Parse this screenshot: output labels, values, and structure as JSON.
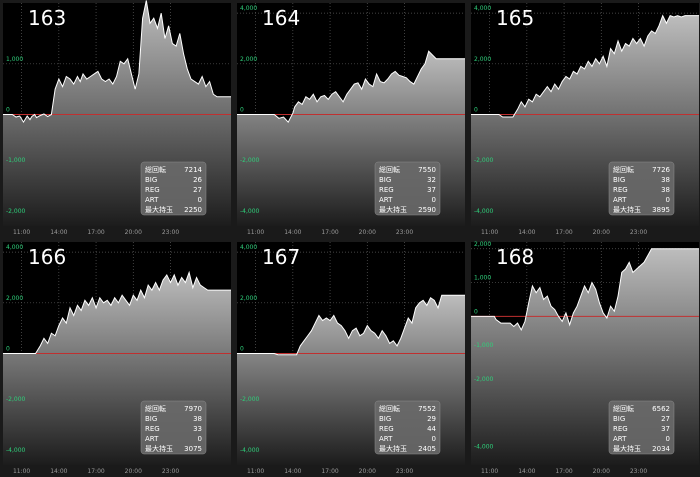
{
  "stats_labels": [
    "総回転",
    "BIG",
    "REG",
    "ART",
    "最大持玉"
  ],
  "x_ticks": [
    "11:00",
    "14:00",
    "17:00",
    "20:00",
    "23:00"
  ],
  "colors": {
    "background": "#000000",
    "zero_line": "#c03030",
    "ytick": "#2ecf7a",
    "xtick": "#9a9a9a",
    "line": "#ffffff"
  },
  "chart_data": [
    {
      "type": "area",
      "title": "163",
      "ylim": [
        -2200,
        2200
      ],
      "y_ticks": [
        "1,000",
        "0",
        "-1,000",
        "-2,000"
      ],
      "y_tick_values": [
        1000,
        0,
        -1000,
        -2000
      ],
      "stats": [
        "7214",
        "26",
        "27",
        "0",
        "2250"
      ],
      "x": [
        0,
        1,
        1.4,
        1.8,
        2.2,
        2.6,
        2.9,
        3.1,
        3.4,
        3.6,
        4.0,
        4.4,
        4.8,
        5.2,
        5.6,
        6.0,
        6.4,
        6.8,
        7.2,
        7.6,
        8.0,
        8.3,
        8.6,
        9.0,
        9.4,
        9.8,
        10.2,
        10.6,
        11.0,
        11.4,
        11.8,
        12.2,
        12.6,
        13.0,
        13.4,
        13.8,
        14.2,
        14.6,
        15.0,
        15.4,
        15.8,
        16.2,
        16.6,
        17.0,
        17.4,
        17.8,
        18.2,
        18.6,
        19.0,
        19.4,
        19.8,
        20.2,
        20.6,
        21.0,
        21.4,
        21.8,
        22.2,
        22.6,
        23.0,
        23.4,
        23.8,
        24.5
      ],
      "y": [
        0,
        0,
        -50,
        -30,
        -150,
        -30,
        -100,
        -40,
        0,
        -60,
        -20,
        10,
        -40,
        0,
        500,
        700,
        550,
        750,
        700,
        600,
        750,
        650,
        800,
        700,
        750,
        800,
        850,
        700,
        650,
        700,
        600,
        750,
        1050,
        1000,
        1100,
        800,
        500,
        800,
        1900,
        2250,
        1800,
        1900,
        1700,
        2000,
        1500,
        1750,
        1400,
        1350,
        1600,
        1200,
        900,
        700,
        650,
        600,
        750,
        550,
        650,
        400,
        350,
        350,
        350,
        350
      ]
    },
    {
      "type": "area",
      "title": "164",
      "ylim": [
        -4400,
        4400
      ],
      "y_ticks": [
        "4,000",
        "2,000",
        "0",
        "-2,000",
        "-4,000"
      ],
      "y_tick_values": [
        4000,
        2000,
        0,
        -2000,
        -4000
      ],
      "stats": [
        "7550",
        "32",
        "37",
        "0",
        "2590"
      ],
      "x": [
        0,
        4,
        4.5,
        5,
        5.5,
        6.0,
        6.2,
        6.6,
        7.0,
        7.4,
        7.8,
        8.2,
        8.6,
        9.0,
        9.4,
        9.8,
        10.2,
        10.6,
        11.0,
        11.4,
        11.8,
        12.2,
        12.6,
        13.0,
        13.4,
        13.8,
        14.2,
        14.6,
        15.0,
        15.4,
        15.8,
        16.2,
        16.6,
        17.0,
        17.4,
        17.8,
        18.2,
        18.6,
        19.0,
        19.4,
        19.8,
        20.2,
        20.6,
        21.0,
        21.4,
        21.8,
        22.2,
        22.6,
        23.0,
        23.4,
        24.5
      ],
      "y": [
        0,
        0,
        -150,
        -100,
        -300,
        50,
        300,
        500,
        400,
        700,
        600,
        800,
        500,
        700,
        750,
        600,
        800,
        900,
        700,
        500,
        800,
        1000,
        1200,
        1250,
        1000,
        1400,
        1200,
        1100,
        1600,
        1300,
        1250,
        1400,
        1600,
        1700,
        1550,
        1500,
        1450,
        1300,
        1200,
        1500,
        1800,
        2000,
        2500,
        2350,
        2200,
        2200,
        2200,
        2200,
        2200,
        2200,
        2200
      ]
    },
    {
      "type": "area",
      "title": "165",
      "ylim": [
        -4400,
        4400
      ],
      "y_ticks": [
        "4,000",
        "2,000",
        "0",
        "-2,000",
        "-4,000"
      ],
      "y_tick_values": [
        4000,
        2000,
        0,
        -2000,
        -4000
      ],
      "stats": [
        "7726",
        "38",
        "38",
        "0",
        "3895"
      ],
      "x": [
        0,
        3,
        3.4,
        4.5,
        5.0,
        5.4,
        5.8,
        6.2,
        6.6,
        7.0,
        7.4,
        7.8,
        8.2,
        8.6,
        9.0,
        9.4,
        9.8,
        10.2,
        10.6,
        11.0,
        11.4,
        11.8,
        12.2,
        12.6,
        13.0,
        13.4,
        13.8,
        14.2,
        14.6,
        15.0,
        15.4,
        15.8,
        16.2,
        16.6,
        17.0,
        17.4,
        17.8,
        18.2,
        18.6,
        19.0,
        19.4,
        19.8,
        20.2,
        20.6,
        21.0,
        21.4,
        21.8,
        22.2,
        22.6,
        23.0,
        24.5
      ],
      "y": [
        0,
        0,
        -100,
        -100,
        200,
        500,
        300,
        600,
        500,
        800,
        700,
        900,
        1100,
        900,
        1200,
        1000,
        1300,
        1500,
        1400,
        1700,
        1600,
        1900,
        1800,
        2100,
        1900,
        2200,
        2000,
        2300,
        1900,
        2600,
        2400,
        2900,
        2500,
        2800,
        2700,
        3000,
        2800,
        3000,
        2700,
        3100,
        3300,
        3200,
        3500,
        3900,
        3600,
        3900,
        3850,
        3900,
        3850,
        3900,
        3900
      ]
    },
    {
      "type": "area",
      "title": "166",
      "ylim": [
        -4400,
        4400
      ],
      "y_ticks": [
        "4,000",
        "2,000",
        "0",
        "-2,000",
        "-4,000"
      ],
      "y_tick_values": [
        4000,
        2000,
        0,
        -2000,
        -4000
      ],
      "stats": [
        "7970",
        "38",
        "33",
        "0",
        "3075"
      ],
      "x": [
        0,
        3.5,
        4.0,
        4.4,
        4.8,
        5.2,
        5.6,
        6.0,
        6.4,
        6.8,
        7.2,
        7.6,
        8.0,
        8.4,
        8.8,
        9.2,
        9.6,
        10.0,
        10.4,
        10.8,
        11.2,
        11.6,
        12.0,
        12.4,
        12.8,
        13.2,
        13.6,
        14.0,
        14.4,
        14.8,
        15.2,
        15.6,
        16.0,
        16.4,
        16.8,
        17.2,
        17.6,
        18.0,
        18.4,
        18.8,
        19.2,
        19.6,
        20.0,
        20.4,
        20.8,
        21.2,
        21.6,
        22.0,
        24.5
      ],
      "y": [
        0,
        0,
        300,
        600,
        400,
        800,
        700,
        1100,
        1400,
        1200,
        1800,
        1500,
        1900,
        1700,
        2100,
        1900,
        2200,
        1800,
        2200,
        2000,
        2100,
        1900,
        2200,
        2000,
        2300,
        2100,
        1900,
        2300,
        2100,
        2500,
        2200,
        2700,
        2500,
        2800,
        2500,
        2900,
        3100,
        2800,
        3100,
        2700,
        3000,
        2800,
        3200,
        2600,
        3000,
        2700,
        2600,
        2500,
        2500
      ]
    },
    {
      "type": "area",
      "title": "167",
      "ylim": [
        -4400,
        4400
      ],
      "y_ticks": [
        "4,000",
        "2,000",
        "0",
        "-2,000",
        "-4,000"
      ],
      "y_tick_values": [
        4000,
        2000,
        0,
        -2000,
        -4000
      ],
      "stats": [
        "7552",
        "29",
        "44",
        "0",
        "2405"
      ],
      "x": [
        0,
        4.0,
        4.4,
        6.4,
        6.8,
        7.2,
        7.6,
        8.0,
        8.4,
        8.8,
        9.2,
        9.6,
        10.0,
        10.4,
        10.8,
        11.2,
        11.6,
        12.0,
        12.4,
        12.8,
        13.2,
        13.6,
        14.0,
        14.4,
        14.8,
        15.2,
        15.6,
        16.0,
        16.4,
        16.8,
        17.2,
        17.6,
        18.0,
        18.4,
        18.8,
        19.2,
        19.6,
        20.0,
        20.4,
        20.8,
        21.2,
        21.6,
        22.0,
        22.4,
        24.5
      ],
      "y": [
        0,
        0,
        -50,
        -50,
        300,
        500,
        700,
        900,
        1200,
        1500,
        1300,
        1400,
        1300,
        1500,
        1200,
        1100,
        900,
        600,
        900,
        1000,
        700,
        800,
        1100,
        900,
        800,
        600,
        900,
        700,
        400,
        500,
        300,
        600,
        1000,
        1400,
        1200,
        1800,
        2000,
        2100,
        1900,
        2200,
        2100,
        1800,
        2300,
        2300,
        2300
      ]
    },
    {
      "type": "area",
      "title": "168",
      "ylim": [
        -4400,
        2200
      ],
      "y_ticks": [
        "2,000",
        "1,000",
        "0",
        "-1,000",
        "-2,000",
        "-4,000"
      ],
      "y_tick_values": [
        2000,
        1000,
        0,
        -1000,
        -2000,
        -4000
      ],
      "stats": [
        "6562",
        "27",
        "37",
        "0",
        "2034"
      ],
      "x": [
        0,
        2.5,
        2.7,
        3.2,
        3.8,
        4.2,
        4.6,
        5.0,
        5.4,
        5.8,
        6.2,
        6.6,
        7.0,
        7.4,
        7.8,
        8.2,
        8.6,
        9.0,
        9.4,
        9.8,
        10.2,
        10.6,
        11.0,
        11.4,
        11.8,
        12.2,
        12.6,
        13.0,
        13.4,
        13.8,
        14.2,
        14.6,
        15.0,
        15.4,
        15.8,
        16.2,
        16.6,
        17.0,
        17.4,
        17.8,
        18.2,
        18.6,
        19.0,
        19.4,
        20.0,
        24.5
      ],
      "y": [
        0,
        0,
        -100,
        -200,
        -200,
        -200,
        -300,
        -200,
        -400,
        -150,
        400,
        900,
        700,
        850,
        500,
        600,
        300,
        200,
        0,
        -150,
        100,
        -250,
        100,
        300,
        600,
        900,
        700,
        1000,
        800,
        400,
        100,
        -50,
        300,
        150,
        600,
        1300,
        1400,
        1600,
        1300,
        1400,
        1500,
        1600,
        1800,
        2000,
        2000,
        2000
      ]
    }
  ]
}
